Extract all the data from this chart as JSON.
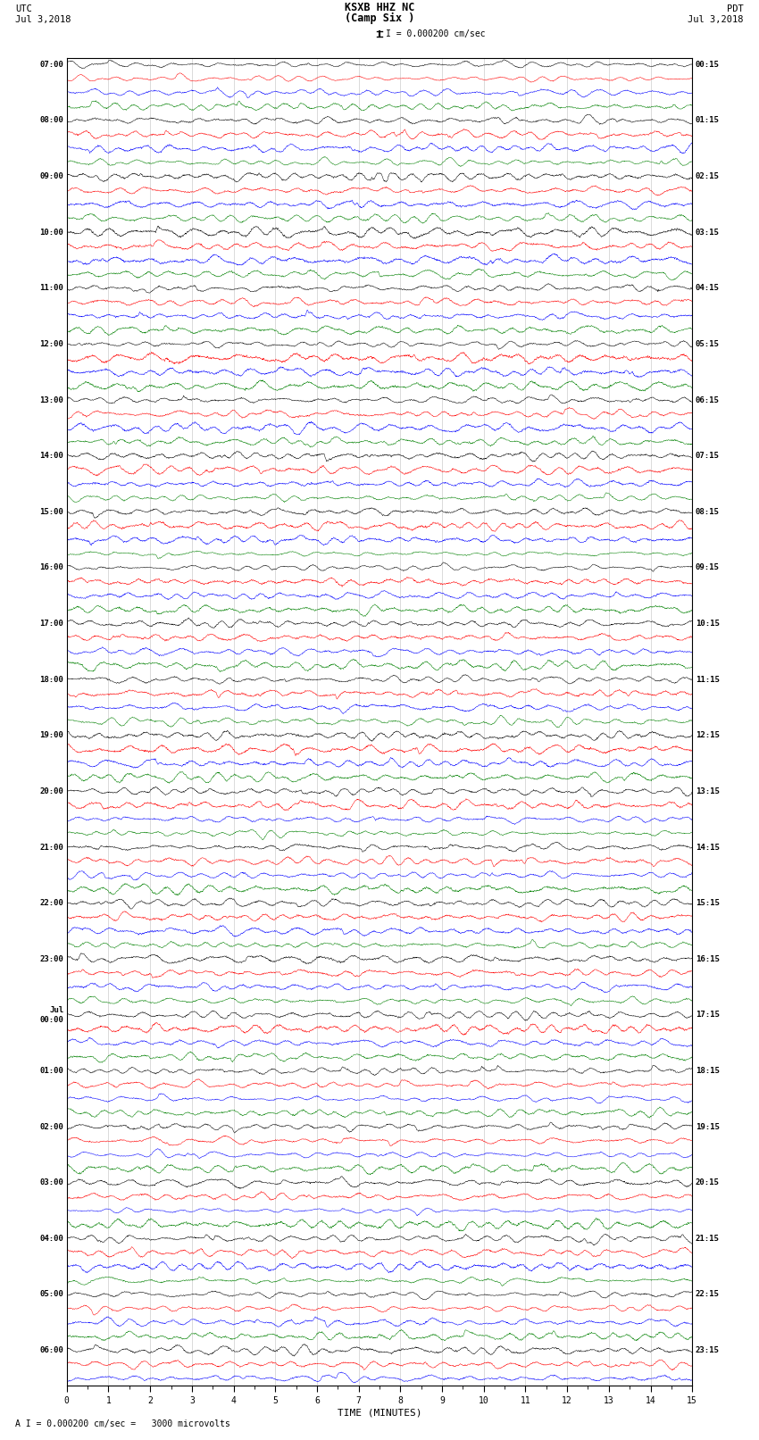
{
  "title_center": "KSXB HHZ NC\n(Camp Six )",
  "title_left": "UTC\nJul 3,2018",
  "title_right": "PDT\nJul 3,2018",
  "scale_bar_label": "I = 0.000200 cm/sec",
  "bottom_note": "A I = 0.000200 cm/sec =   3000 microvolts",
  "xlabel": "TIME (MINUTES)",
  "time_axis_min": 0,
  "time_axis_max": 15,
  "time_ticks": [
    0,
    1,
    2,
    3,
    4,
    5,
    6,
    7,
    8,
    9,
    10,
    11,
    12,
    13,
    14,
    15
  ],
  "left_times": [
    "07:00",
    "",
    "",
    "",
    "08:00",
    "",
    "",
    "",
    "09:00",
    "",
    "",
    "",
    "10:00",
    "",
    "",
    "",
    "11:00",
    "",
    "",
    "",
    "12:00",
    "",
    "",
    "",
    "13:00",
    "",
    "",
    "",
    "14:00",
    "",
    "",
    "",
    "15:00",
    "",
    "",
    "",
    "16:00",
    "",
    "",
    "",
    "17:00",
    "",
    "",
    "",
    "18:00",
    "",
    "",
    "",
    "19:00",
    "",
    "",
    "",
    "20:00",
    "",
    "",
    "",
    "21:00",
    "",
    "",
    "",
    "22:00",
    "",
    "",
    "",
    "23:00",
    "",
    "",
    "",
    "Jul\n00:00",
    "",
    "",
    "",
    "01:00",
    "",
    "",
    "",
    "02:00",
    "",
    "",
    "",
    "03:00",
    "",
    "",
    "",
    "04:00",
    "",
    "",
    "",
    "05:00",
    "",
    "",
    "",
    "06:00",
    "",
    ""
  ],
  "right_times": [
    "00:15",
    "",
    "",
    "",
    "01:15",
    "",
    "",
    "",
    "02:15",
    "",
    "",
    "",
    "03:15",
    "",
    "",
    "",
    "04:15",
    "",
    "",
    "",
    "05:15",
    "",
    "",
    "",
    "06:15",
    "",
    "",
    "",
    "07:15",
    "",
    "",
    "",
    "08:15",
    "",
    "",
    "",
    "09:15",
    "",
    "",
    "",
    "10:15",
    "",
    "",
    "",
    "11:15",
    "",
    "",
    "",
    "12:15",
    "",
    "",
    "",
    "13:15",
    "",
    "",
    "",
    "14:15",
    "",
    "",
    "",
    "15:15",
    "",
    "",
    "",
    "16:15",
    "",
    "",
    "",
    "17:15",
    "",
    "",
    "",
    "18:15",
    "",
    "",
    "",
    "19:15",
    "",
    "",
    "",
    "20:15",
    "",
    "",
    "",
    "21:15",
    "",
    "",
    "",
    "22:15",
    "",
    "",
    "",
    "23:15",
    "",
    ""
  ],
  "trace_colors": [
    "black",
    "red",
    "blue",
    "green"
  ],
  "n_rows": 95,
  "bg_color": "white",
  "noise_seed": 42
}
